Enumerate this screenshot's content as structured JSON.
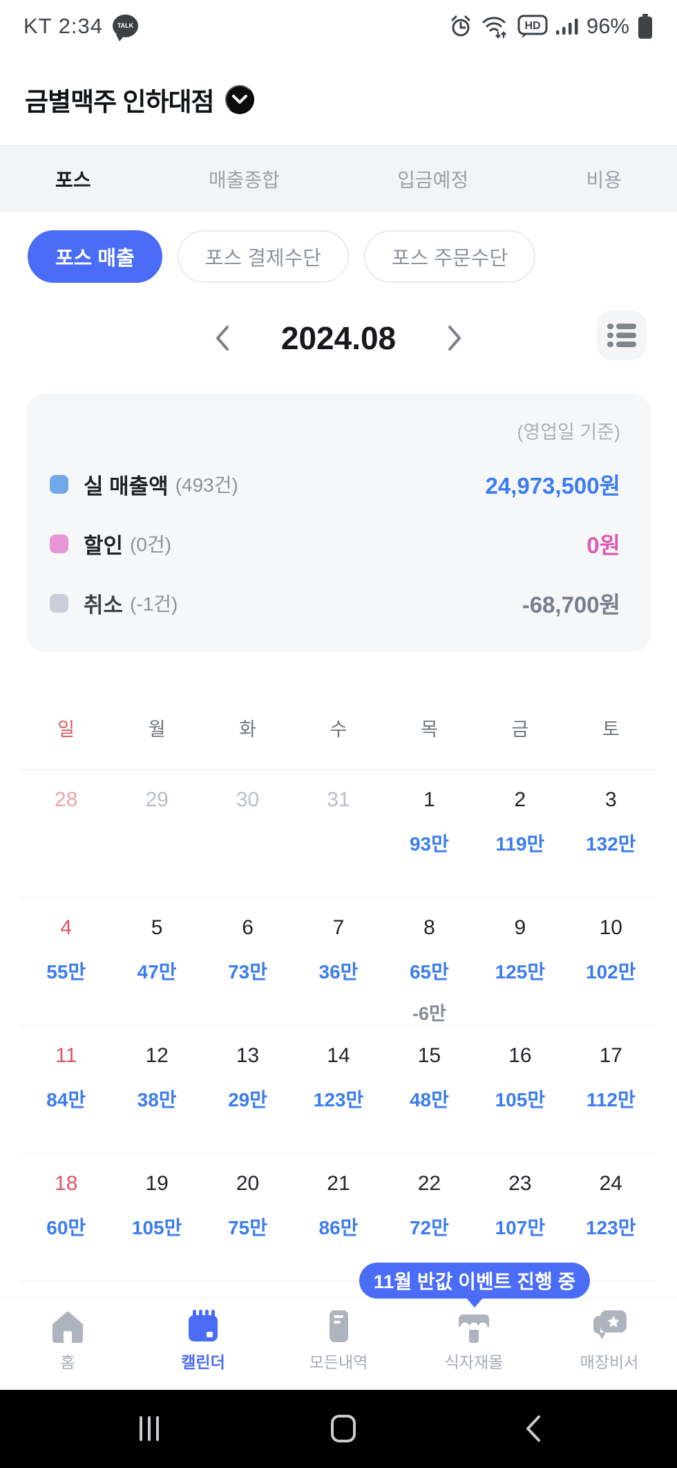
{
  "status_bar": {
    "carrier_time": "KT 2:34",
    "talk_badge": "TALK",
    "battery_percent": "96%"
  },
  "header": {
    "store_name": "금별맥주 인하대점"
  },
  "tabs": {
    "items": [
      {
        "label": "포스",
        "active": true
      },
      {
        "label": "매출종합",
        "active": false
      },
      {
        "label": "입금예정",
        "active": false
      },
      {
        "label": "비용",
        "active": false
      }
    ]
  },
  "filters": {
    "items": [
      {
        "label": "포스 매출",
        "active": true
      },
      {
        "label": "포스 결제수단",
        "active": false
      },
      {
        "label": "포스 주문수단",
        "active": false
      }
    ]
  },
  "month_nav": {
    "month_label": "2024.08"
  },
  "summary": {
    "basis_note": "(영업일 기준)",
    "rows": [
      {
        "label": "실 매출액",
        "count": "(493건)",
        "value": "24,973,500원",
        "dot_color": "#6fa9e8",
        "value_color": "#3d7df1"
      },
      {
        "label": "할인",
        "count": "(0건)",
        "value": "0원",
        "dot_color": "#e795d5",
        "value_color": "#db5cb4"
      },
      {
        "label": "취소",
        "count": "(-1건)",
        "value": "-68,700원",
        "dot_color": "#c9cedb",
        "value_color": "#787f8c"
      }
    ]
  },
  "calendar": {
    "weekdays": [
      "일",
      "월",
      "화",
      "수",
      "목",
      "금",
      "토"
    ],
    "weeks": [
      [
        {
          "day": "28",
          "prev": true,
          "sun": true
        },
        {
          "day": "29",
          "prev": true
        },
        {
          "day": "30",
          "prev": true
        },
        {
          "day": "31",
          "prev": true
        },
        {
          "day": "1",
          "amount": "93만"
        },
        {
          "day": "2",
          "amount": "119만"
        },
        {
          "day": "3",
          "amount": "132만"
        }
      ],
      [
        {
          "day": "4",
          "sun": true,
          "amount": "55만"
        },
        {
          "day": "5",
          "amount": "47만"
        },
        {
          "day": "6",
          "amount": "73만"
        },
        {
          "day": "7",
          "amount": "36만"
        },
        {
          "day": "8",
          "amount": "65만",
          "sub": "-6만"
        },
        {
          "day": "9",
          "amount": "125만"
        },
        {
          "day": "10",
          "amount": "102만"
        }
      ],
      [
        {
          "day": "11",
          "sun": true,
          "amount": "84만"
        },
        {
          "day": "12",
          "amount": "38만"
        },
        {
          "day": "13",
          "amount": "29만"
        },
        {
          "day": "14",
          "amount": "123만"
        },
        {
          "day": "15",
          "amount": "48만"
        },
        {
          "day": "16",
          "amount": "105만"
        },
        {
          "day": "17",
          "amount": "112만"
        }
      ],
      [
        {
          "day": "18",
          "sun": true,
          "amount": "60만"
        },
        {
          "day": "19",
          "amount": "105만"
        },
        {
          "day": "20",
          "amount": "75만"
        },
        {
          "day": "21",
          "amount": "86만"
        },
        {
          "day": "22",
          "amount": "72만"
        },
        {
          "day": "23",
          "amount": "107만"
        },
        {
          "day": "24",
          "amount": "123만"
        }
      ]
    ]
  },
  "tooltip": {
    "text": "11월 반값 이벤트 진행 중"
  },
  "bottom_nav": {
    "items": [
      {
        "label": "홈",
        "icon": "home-icon",
        "active": false
      },
      {
        "label": "캘린더",
        "icon": "calendar-icon",
        "active": true
      },
      {
        "label": "모든내역",
        "icon": "receipt-icon",
        "active": false
      },
      {
        "label": "식자재몰",
        "icon": "store-icon",
        "active": false
      },
      {
        "label": "매장비서",
        "icon": "assistant-icon",
        "active": false
      }
    ]
  },
  "colors": {
    "accent_blue": "#4a6cf7",
    "amount_blue": "#3b7cf0",
    "sunday_red": "#dd5560"
  }
}
